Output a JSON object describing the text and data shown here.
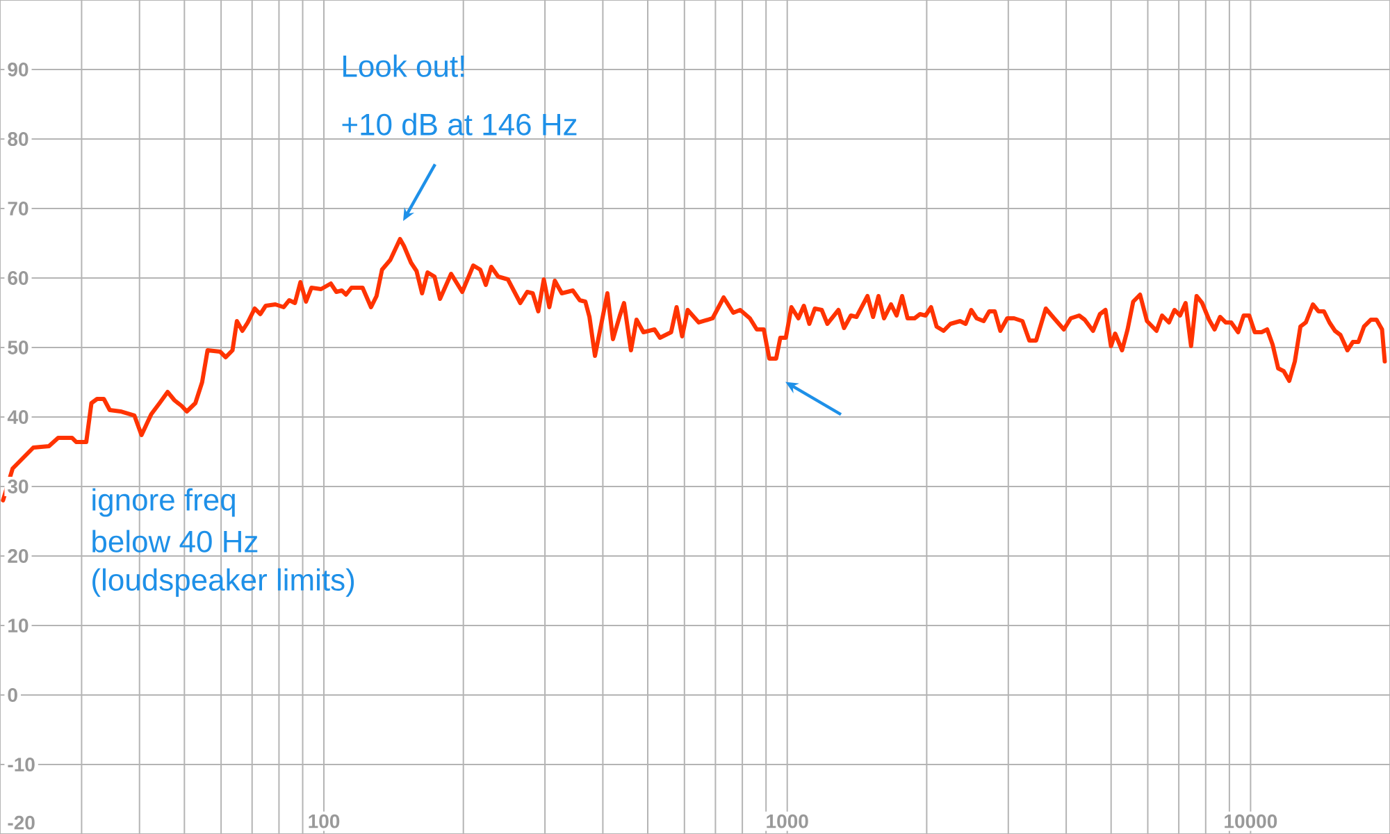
{
  "chart_data": {
    "type": "line",
    "x": [
      20.3,
      21.3,
      23.6,
      25.5,
      26.7,
      28.6,
      29.2,
      30.7,
      31.5,
      32.4,
      33.5,
      34.5,
      36.4,
      39.0,
      40.4,
      42.4,
      44.2,
      46.0,
      47.6,
      49.3,
      50.6,
      52.8,
      54.6,
      56.1,
      59.7,
      61.4,
      63.5,
      64.9,
      66.7,
      68.5,
      70.9,
      72.9,
      74.9,
      78.6,
      81.9,
      84.2,
      86.6,
      89.0,
      91.5,
      94.0,
      98.6,
      103.5,
      106.4,
      109.3,
      111.6,
      114.7,
      121.2,
      126.4,
      129.9,
      133.5,
      139.1,
      146.0,
      148.9,
      154.2,
      158.5,
      162.9,
      167.4,
      173.3,
      178.1,
      188.2,
      198.9,
      210.1,
      217.5,
      223.6,
      229.8,
      237.8,
      249.5,
      265.4,
      274.7,
      282.3,
      290.2,
      298.3,
      306.6,
      315.1,
      326.2,
      344.6,
      356.7,
      366.7,
      374.3,
      384.7,
      409.1,
      420.6,
      435.3,
      444.4,
      460.0,
      472.9,
      489.4,
      517.0,
      531.4,
      561.5,
      577.1,
      593.2,
      609.8,
      644.3,
      690.1,
      729.2,
      764.9,
      791.6,
      830.6,
      859.6,
      890.0,
      914.7,
      946.4,
      966.2,
      993.1,
      1021,
      1057,
      1086,
      1116,
      1147,
      1187,
      1221,
      1290,
      1326,
      1372,
      1411,
      1490,
      1532,
      1574,
      1618,
      1675,
      1722,
      1770,
      1819,
      1883,
      1935,
      1989,
      2044,
      2101,
      2175,
      2250,
      2361,
      2427,
      2495,
      2564,
      2654,
      2729,
      2805,
      2883,
      2984,
      3088,
      3218,
      3331,
      3445,
      3615,
      3767,
      3954,
      4092,
      4266,
      4385,
      4570,
      4730,
      4862,
      4997,
      5102,
      5280,
      5427,
      5580,
      5774,
      5976,
      6266,
      6442,
      6667,
      6852,
      7044,
      7240,
      7440,
      7648,
      7862,
      8134,
      8362,
      8594,
      8835,
      9082,
      9400,
      9663,
      9931,
      10210,
      10560,
      10860,
      11160,
      11470,
      11790,
      12120,
      12460,
      12810,
      13160,
      13630,
      14010,
      14400,
      14800,
      15210,
      15630,
      16180,
      16630,
      17090,
      17570,
      18190,
      18700,
      19220,
      19480
    ],
    "series": [
      {
        "color": "#ff3300",
        "values": [
          28,
          32.6,
          35.6,
          35.8,
          37,
          37,
          36.4,
          36.4,
          42,
          42.6,
          42.6,
          41,
          40.8,
          40.2,
          37.4,
          40.4,
          42,
          43.6,
          42.4,
          41.6,
          40.8,
          42,
          45,
          49.6,
          49.4,
          48.6,
          49.6,
          53.8,
          52.4,
          53.6,
          55.6,
          54.8,
          56,
          56.2,
          55.8,
          56.8,
          56.4,
          59.4,
          56.6,
          58.6,
          58.4,
          59.2,
          58,
          58.2,
          57.6,
          58.6,
          58.6,
          55.8,
          57.4,
          61.2,
          62.6,
          65.6,
          64.6,
          62.2,
          61,
          57.8,
          60.8,
          60.2,
          57,
          60.6,
          58,
          61.8,
          61.2,
          59,
          61.6,
          60.2,
          59.8,
          56.4,
          58,
          57.8,
          55.2,
          59.8,
          55.8,
          59.6,
          57.8,
          58.2,
          56.8,
          56.6,
          54.4,
          48.8,
          57.8,
          51.2,
          54.6,
          56.4,
          49.6,
          54,
          52.2,
          52.6,
          51.4,
          52.2,
          55.8,
          51.6,
          55.4,
          53.6,
          54.2,
          57.2,
          55,
          55.4,
          54.2,
          52.6,
          52.6,
          48.4,
          48.4,
          51.4,
          51.4,
          55.8,
          54.2,
          56,
          53.4,
          55.6,
          55.4,
          53.4,
          55.4,
          52.8,
          54.6,
          54.4,
          57.4,
          54.4,
          57.4,
          54.2,
          56.2,
          54.6,
          57.4,
          54.2,
          54.2,
          54.8,
          54.6,
          55.8,
          53,
          52.4,
          53.4,
          53.8,
          53.4,
          55.4,
          54.2,
          53.8,
          55.2,
          55.2,
          52.4,
          54.2,
          54.2,
          53.8,
          51,
          51,
          55.6,
          54.2,
          52.6,
          54.2,
          54.6,
          54,
          52.4,
          54.8,
          55.4,
          50.2,
          52,
          49.6,
          52.6,
          56.6,
          57.6,
          53.8,
          52.4,
          54.6,
          53.6,
          55.4,
          54.6,
          56.4,
          50.2,
          57.4,
          56.4,
          54,
          52.6,
          54.4,
          53.6,
          53.6,
          52.2,
          54.6,
          54.6,
          52.2,
          52.2,
          52.6,
          50.4,
          47,
          46.6,
          45.2,
          48,
          53,
          53.6,
          56.2,
          55.2,
          55.2,
          53.6,
          52.4,
          51.8,
          49.6,
          50.8,
          50.8,
          53,
          54,
          54,
          52.6,
          48
        ]
      }
    ],
    "log": "x",
    "xlim": [
      20,
      20000
    ],
    "xticks": [
      {
        "value": 30,
        "label": null
      },
      {
        "value": 40,
        "label": null
      },
      {
        "value": 50,
        "label": null
      },
      {
        "value": 60,
        "label": null
      },
      {
        "value": 70,
        "label": null
      },
      {
        "value": 80,
        "label": null
      },
      {
        "value": 90,
        "label": null
      },
      100,
      {
        "value": 200,
        "label": null
      },
      {
        "value": 300,
        "label": null
      },
      {
        "value": 400,
        "label": null
      },
      {
        "value": 500,
        "label": null
      },
      {
        "value": 600,
        "label": null
      },
      {
        "value": 700,
        "label": null
      },
      {
        "value": 800,
        "label": null
      },
      {
        "value": 900,
        "label": null
      },
      1000,
      {
        "value": 2000,
        "label": null
      },
      {
        "value": 3000,
        "label": null
      },
      {
        "value": 4000,
        "label": null
      },
      {
        "value": 5000,
        "label": null
      },
      {
        "value": 6000,
        "label": null
      },
      {
        "value": 7000,
        "label": null
      },
      {
        "value": 8000,
        "label": null
      },
      {
        "value": 9000,
        "label": null
      },
      10000
    ],
    "ylim": [
      -20,
      100
    ],
    "yticks": [
      -20,
      -10,
      0,
      10,
      20,
      30,
      40,
      50,
      60,
      70,
      80,
      90
    ],
    "grid": true,
    "annotations": [
      "Look out!",
      "+10 dB at 146 Hz",
      "ignore freq",
      "below 40 Hz",
      "(loudspeaker limits)"
    ]
  }
}
